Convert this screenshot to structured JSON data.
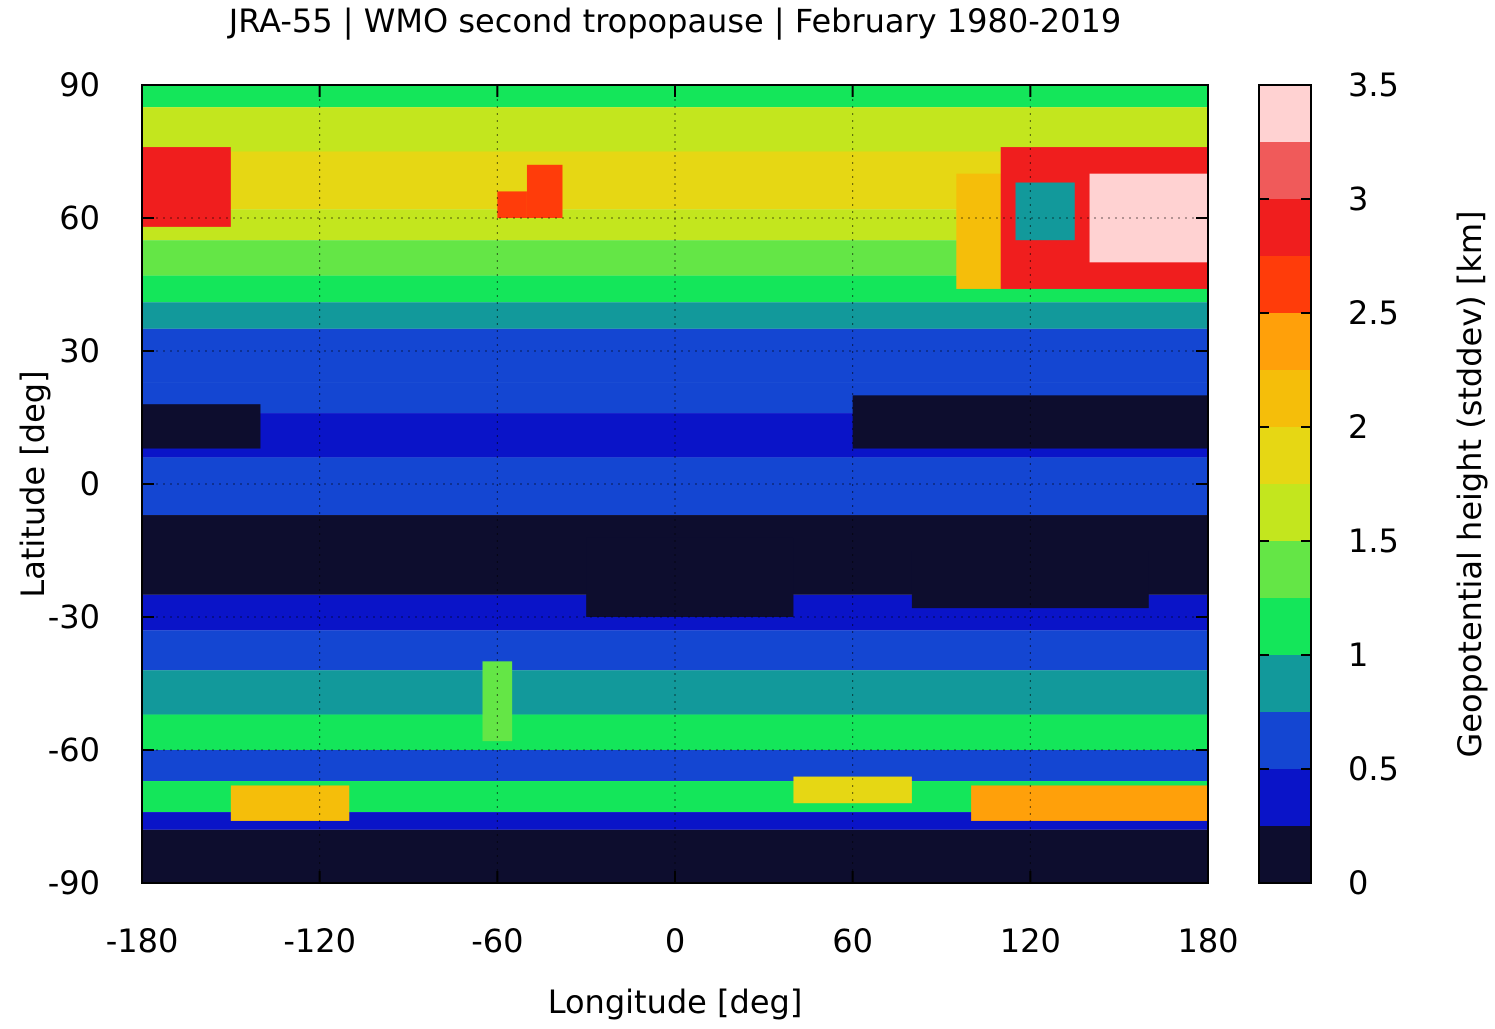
{
  "chart_data": {
    "type": "heatmap",
    "title": "JRA-55 | WMO second tropopause | February 1980-2019",
    "xlabel": "Longitude [deg]",
    "ylabel": "Latitude [deg]",
    "colorbar_label": "Geopotential height (stddev) [km]",
    "xlim": [
      -180,
      180
    ],
    "ylim": [
      -90,
      90
    ],
    "xticks": [
      -180,
      -120,
      -60,
      0,
      60,
      120,
      180
    ],
    "yticks": [
      90,
      60,
      30,
      0,
      -30,
      -60,
      -90
    ],
    "x_tick_labels": [
      "-180",
      "-120",
      "-60",
      "0",
      "60",
      "120",
      "180"
    ],
    "y_tick_labels": [
      "90",
      "60",
      "30",
      "0",
      "-30",
      "-60",
      "-90"
    ],
    "grid": true,
    "colorbar": {
      "range": [
        0,
        3.5
      ],
      "step": 0.25,
      "tick_values": [
        0,
        0.5,
        1,
        1.5,
        2,
        2.5,
        3,
        3.5
      ],
      "tick_labels": [
        "0",
        "0.5",
        "1",
        "1.5",
        "2",
        "2.5",
        "3",
        "3.5"
      ],
      "colors": [
        "#0d0d2e",
        "#0a14c8",
        "#1446d2",
        "#12999b",
        "#14e65a",
        "#64e646",
        "#c3e61e",
        "#e6d714",
        "#f5be0a",
        "#ffa00a",
        "#ff3c0a",
        "#f01e1e",
        "#f05a5a",
        "#ffd2d2"
      ]
    },
    "latitude_bands": [
      {
        "lat_min": 85,
        "lat_max": 90,
        "value": 1.2
      },
      {
        "lat_min": 75,
        "lat_max": 85,
        "value": 1.5
      },
      {
        "lat_min": 62,
        "lat_max": 75,
        "value": 1.85
      },
      {
        "lat_min": 55,
        "lat_max": 62,
        "value": 1.6
      },
      {
        "lat_min": 47,
        "lat_max": 55,
        "value": 1.3
      },
      {
        "lat_min": 41,
        "lat_max": 47,
        "value": 1.1
      },
      {
        "lat_min": 35,
        "lat_max": 41,
        "value": 0.9
      },
      {
        "lat_min": 23,
        "lat_max": 35,
        "value": 0.6
      },
      {
        "lat_min": 16,
        "lat_max": 23,
        "value": 0.55
      },
      {
        "lat_min": 6,
        "lat_max": 16,
        "value": 0.3
      },
      {
        "lat_min": -7,
        "lat_max": 6,
        "value": 0.55
      },
      {
        "lat_min": -25,
        "lat_max": -7,
        "value": 0.2
      },
      {
        "lat_min": -33,
        "lat_max": -25,
        "value": 0.4
      },
      {
        "lat_min": -42,
        "lat_max": -33,
        "value": 0.6
      },
      {
        "lat_min": -52,
        "lat_max": -42,
        "value": 0.9
      },
      {
        "lat_min": -60,
        "lat_max": -52,
        "value": 1.1
      },
      {
        "lat_min": -67,
        "lat_max": -60,
        "value": 0.7
      },
      {
        "lat_min": -74,
        "lat_max": -67,
        "value": 1.2
      },
      {
        "lat_min": -78,
        "lat_max": -74,
        "value": 0.3
      },
      {
        "lat_min": -90,
        "lat_max": -78,
        "value": 0.05
      }
    ],
    "regional_anomalies": [
      {
        "lon_min": -180,
        "lon_max": -150,
        "lat_min": 58,
        "lat_max": 76,
        "value": 2.9
      },
      {
        "lon_min": -50,
        "lon_max": -38,
        "lat_min": 60,
        "lat_max": 72,
        "value": 2.6
      },
      {
        "lon_min": -60,
        "lon_max": -50,
        "lat_min": 60,
        "lat_max": 66,
        "value": 2.6
      },
      {
        "lon_min": 95,
        "lon_max": 120,
        "lat_min": 44,
        "lat_max": 70,
        "value": 2.0
      },
      {
        "lon_min": 110,
        "lon_max": 180,
        "lat_min": 44,
        "lat_max": 76,
        "value": 2.8
      },
      {
        "lon_min": 140,
        "lon_max": 180,
        "lat_min": 50,
        "lat_max": 70,
        "value": 3.3
      },
      {
        "lon_min": 115,
        "lon_max": 135,
        "lat_min": 55,
        "lat_max": 68,
        "value": 0.9
      },
      {
        "lon_min": 100,
        "lon_max": 180,
        "lat_min": -76,
        "lat_max": -68,
        "value": 2.3
      },
      {
        "lon_min": -150,
        "lon_max": -110,
        "lat_min": -76,
        "lat_max": -68,
        "value": 2.0
      },
      {
        "lon_min": 40,
        "lon_max": 80,
        "lat_min": -72,
        "lat_max": -66,
        "value": 1.8
      },
      {
        "lon_min": -65,
        "lon_max": -55,
        "lat_min": -58,
        "lat_max": -40,
        "value": 1.3
      },
      {
        "lon_min": -30,
        "lon_max": 40,
        "lat_min": -30,
        "lat_max": -12,
        "value": 0.05
      },
      {
        "lon_min": 80,
        "lon_max": 160,
        "lat_min": -28,
        "lat_max": -15,
        "value": 0.1
      },
      {
        "lon_min": -180,
        "lon_max": -140,
        "lat_min": 8,
        "lat_max": 18,
        "value": 0.05
      },
      {
        "lon_min": 60,
        "lon_max": 180,
        "lat_min": 8,
        "lat_max": 20,
        "value": 0.05
      }
    ]
  }
}
